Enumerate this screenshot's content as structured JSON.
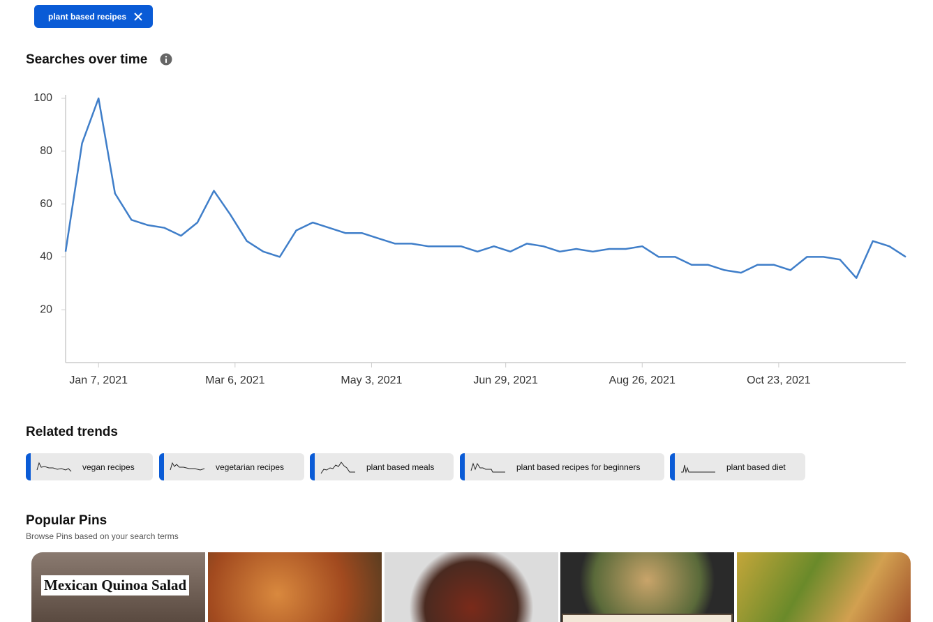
{
  "search_chip": "plant based recipes",
  "chart_data": {
    "type": "line",
    "title": "Searches over time",
    "x": [
      "2020-12-24",
      "2020-12-31",
      "2021-01-07",
      "2021-01-14",
      "2021-01-21",
      "2021-01-28",
      "2021-02-04",
      "2021-02-11",
      "2021-02-18",
      "2021-02-25",
      "2021-03-04",
      "2021-03-11",
      "2021-03-18",
      "2021-03-25",
      "2021-04-01",
      "2021-04-08",
      "2021-04-15",
      "2021-04-22",
      "2021-04-29",
      "2021-05-06",
      "2021-05-13",
      "2021-05-20",
      "2021-05-27",
      "2021-06-03",
      "2021-06-10",
      "2021-06-17",
      "2021-06-24",
      "2021-07-01",
      "2021-07-08",
      "2021-07-15",
      "2021-07-22",
      "2021-07-29",
      "2021-08-05",
      "2021-08-12",
      "2021-08-19",
      "2021-08-26",
      "2021-09-02",
      "2021-09-09",
      "2021-09-16",
      "2021-09-23",
      "2021-09-30",
      "2021-10-07",
      "2021-10-14",
      "2021-10-21",
      "2021-10-28",
      "2021-11-04",
      "2021-11-11",
      "2021-11-18",
      "2021-11-25",
      "2021-12-02",
      "2021-12-09",
      "2021-12-16"
    ],
    "values": [
      42,
      83,
      100,
      64,
      54,
      52,
      51,
      48,
      53,
      65,
      56,
      46,
      42,
      40,
      50,
      53,
      51,
      49,
      49,
      47,
      45,
      45,
      44,
      44,
      44,
      42,
      44,
      42,
      45,
      44,
      42,
      43,
      42,
      43,
      43,
      44,
      40,
      40,
      37,
      37,
      35,
      34,
      37,
      37,
      35,
      40,
      40,
      39,
      32,
      46,
      44,
      40
    ],
    "color": "#3f7ec9",
    "xlim": [
      "2020-12-24",
      "2021-12-16"
    ],
    "xticks": [
      {
        "value": "2021-01-07",
        "label": "Jan 7, 2021"
      },
      {
        "value": "2021-03-06",
        "label": "Mar 6, 2021"
      },
      {
        "value": "2021-05-03",
        "label": "May 3, 2021"
      },
      {
        "value": "2021-06-29",
        "label": "Jun 29, 2021"
      },
      {
        "value": "2021-08-26",
        "label": "Aug 26, 2021"
      },
      {
        "value": "2021-10-23",
        "label": "Oct 23, 2021"
      }
    ],
    "ylim": [
      0,
      100
    ],
    "yticks": [
      20,
      40,
      60,
      80,
      100
    ]
  },
  "related_trends": {
    "title": "Related trends",
    "items": [
      "vegan recipes",
      "vegetarian recipes",
      "plant based meals",
      "plant based recipes for beginners",
      "plant based diet"
    ]
  },
  "popular_pins": {
    "title": "Popular Pins",
    "subtitle": "Browse Pins based on your search terms",
    "pins": [
      {
        "overlay_text": "Mexican Quinoa Salad"
      }
    ]
  }
}
